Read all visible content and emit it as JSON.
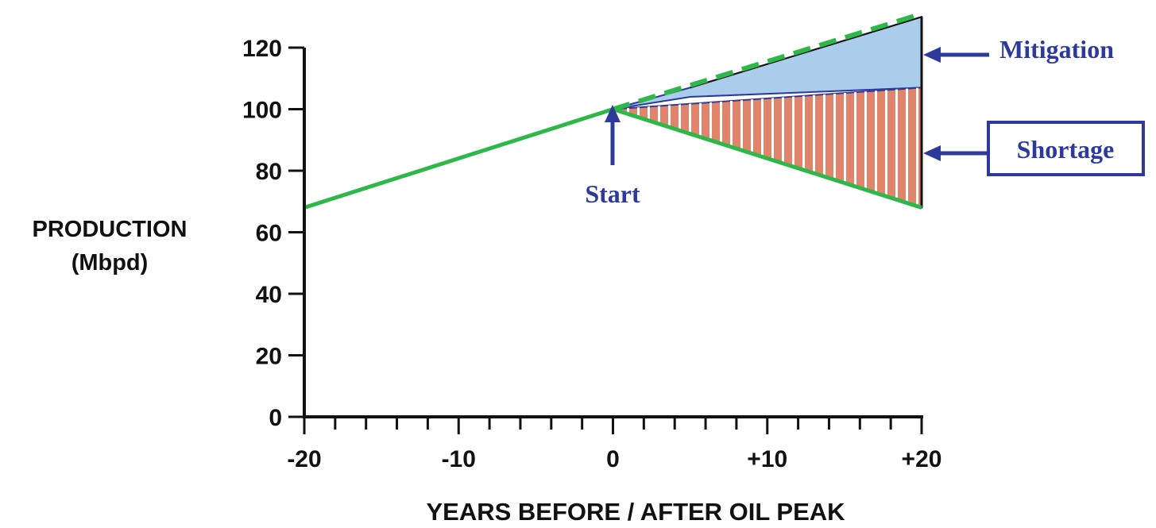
{
  "chart_data": {
    "type": "line",
    "title": "",
    "xlabel": "YEARS BEFORE / AFTER  OIL PEAK",
    "ylabel_lines": [
      "PRODUCTION",
      "(Mbpd)"
    ],
    "xlim": [
      -20,
      20
    ],
    "ylim": [
      0,
      120
    ],
    "x_ticks": [
      -20,
      -10,
      0,
      10,
      20
    ],
    "x_tick_labels": [
      "-20",
      "-10",
      "0",
      "+10",
      "+20"
    ],
    "x_minor_step": 2,
    "y_ticks": [
      0,
      20,
      40,
      60,
      80,
      100,
      120
    ],
    "y_tick_labels": [
      "0",
      "20",
      "40",
      "60",
      "80",
      "100",
      "120"
    ],
    "grid": false,
    "series": [
      {
        "style": "solid",
        "color": "#2fb84a",
        "x": [
          -20,
          0,
          20
        ],
        "y": [
          68,
          100,
          68
        ]
      },
      {
        "style": "dashed",
        "color": "#2fb84a",
        "x": [
          0,
          20
        ],
        "y": [
          100,
          131
        ]
      }
    ],
    "areas": [
      {
        "label": "Mitigation",
        "fill": "#a9cdea",
        "x": [
          0,
          5,
          20
        ],
        "y_low": [
          100,
          104,
          107
        ],
        "y_high": [
          100,
          107,
          130
        ]
      },
      {
        "label": "Shortage",
        "fill": "#e0846c",
        "hatch": "#ffffff",
        "x": [
          0,
          20
        ],
        "y_low": [
          100,
          68
        ],
        "y_high": [
          100,
          107
        ]
      }
    ],
    "annotations": [
      {
        "text": "Mitigation",
        "x": 20,
        "y": 118,
        "boxed": false
      },
      {
        "text": "Shortage",
        "x": 20,
        "y": 86,
        "boxed": true
      },
      {
        "text": "Start",
        "x": 0,
        "y": 100
      }
    ],
    "colors": {
      "annotation": "#2e3a9a",
      "axis": "#111111",
      "production": "#2fb84a"
    }
  }
}
